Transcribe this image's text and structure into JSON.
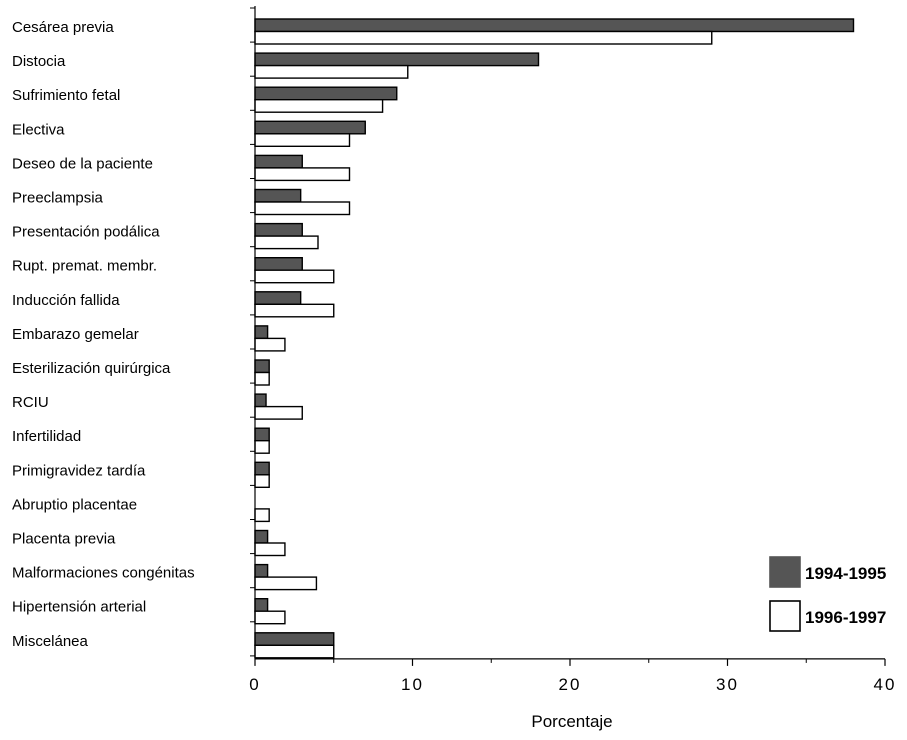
{
  "chart_data": {
    "type": "bar",
    "orientation": "horizontal",
    "categories": [
      "Cesárea previa",
      "Distocia",
      "Sufrimiento fetal",
      "Electiva",
      "Deseo de la paciente",
      "Preeclampsia",
      "Presentación podálica",
      "Rupt. premat. membr.",
      "Inducción fallida",
      "Embarazo gemelar",
      "Esterilización quirúrgica",
      "RCIU",
      "Infertilidad",
      "Primigravidez tardía",
      "Abruptio placentae",
      "Placenta previa",
      "Malformaciones congénitas",
      "Hipertensión arterial",
      "Miscelánea"
    ],
    "series": [
      {
        "name": "1994-1995",
        "color": "#555555",
        "values": [
          38,
          18,
          9,
          7,
          3,
          2.9,
          3,
          3,
          2.9,
          0.8,
          0.9,
          0.7,
          0.9,
          0.9,
          0,
          0.8,
          0.8,
          0.8,
          5
        ]
      },
      {
        "name": "1996-1997",
        "color": "#ffffff",
        "values": [
          29,
          9.7,
          8.1,
          6,
          6,
          6,
          4,
          5,
          5,
          1.9,
          0.9,
          3,
          0.9,
          0.9,
          0.9,
          1.9,
          3.9,
          1.9,
          5
        ]
      }
    ],
    "xlim": [
      0,
      40
    ],
    "xticks": [
      "0",
      "10",
      "20",
      "30",
      "40"
    ],
    "xlabel": "Porcentaje",
    "ylabel": "",
    "title": "",
    "grid": false,
    "legend_position": "bottom-right"
  }
}
